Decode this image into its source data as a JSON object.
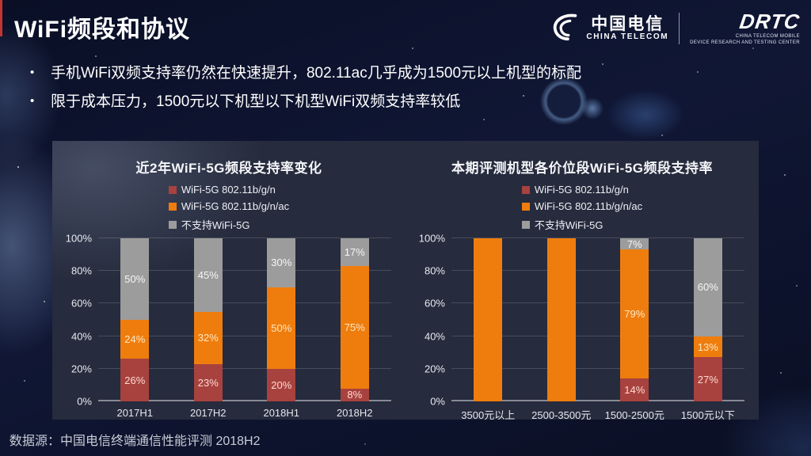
{
  "slide": {
    "title": "WiFi频段和协议",
    "bullets": [
      "手机WiFi双频支持率仍然在快速提升，802.11ac几乎成为1500元以上机型的标配",
      "限于成本压力，1500元以下机型以下机型WiFi双频支持率较低"
    ],
    "source": "数据源：中国电信终端通信性能评测 2018H2"
  },
  "logos": {
    "china_telecom": {
      "cn": "中国电信",
      "en": "CHINA TELECOM"
    },
    "drtc": {
      "name": "DRTC",
      "line1": "CHINA TELECOM MOBILE",
      "line2": "DEVICE RESEARCH AND TESTING CENTER"
    }
  },
  "colors": {
    "series_red": "#a8423e",
    "series_orange": "#ef7d0e",
    "series_gray": "#9c9c9c",
    "panel_bg": "#262b3d",
    "accent_red_edge": "#c23530"
  },
  "chart_data": [
    {
      "type": "bar",
      "stacked": true,
      "title": "近2年WiFi-5G频段支持率变化",
      "categories": [
        "2017H1",
        "2017H2",
        "2018H1",
        "2018H2"
      ],
      "series": [
        {
          "name": "WiFi-5G 802.11b/g/n",
          "color": "#a8423e",
          "values": [
            26,
            23,
            20,
            8
          ]
        },
        {
          "name": "WiFi-5G 802.11b/g/n/ac",
          "color": "#ef7d0e",
          "values": [
            24,
            32,
            50,
            75
          ]
        },
        {
          "name": "不支持WiFi-5G",
          "color": "#9c9c9c",
          "values": [
            50,
            45,
            30,
            17
          ]
        }
      ],
      "ylim": [
        0,
        100
      ],
      "yticks": [
        "0%",
        "20%",
        "40%",
        "60%",
        "80%",
        "100%"
      ],
      "grid": true,
      "legend_position": "top",
      "label_format": "percent"
    },
    {
      "type": "bar",
      "stacked": true,
      "title": "本期评测机型各价位段WiFi-5G频段支持率",
      "categories": [
        "3500元以上",
        "2500-3500元",
        "1500-2500元",
        "1500元以下"
      ],
      "series": [
        {
          "name": "WiFi-5G 802.11b/g/n",
          "color": "#a8423e",
          "values": [
            0,
            0,
            14,
            27
          ]
        },
        {
          "name": "WiFi-5G 802.11b/g/n/ac",
          "color": "#ef7d0e",
          "values": [
            100,
            100,
            79,
            13
          ]
        },
        {
          "name": "不支持WiFi-5G",
          "color": "#9c9c9c",
          "values": [
            0,
            0,
            7,
            60
          ]
        }
      ],
      "ylim": [
        0,
        100
      ],
      "yticks": [
        "0%",
        "20%",
        "40%",
        "60%",
        "80%",
        "100%"
      ],
      "grid": true,
      "legend_position": "top",
      "label_format": "percent"
    }
  ]
}
